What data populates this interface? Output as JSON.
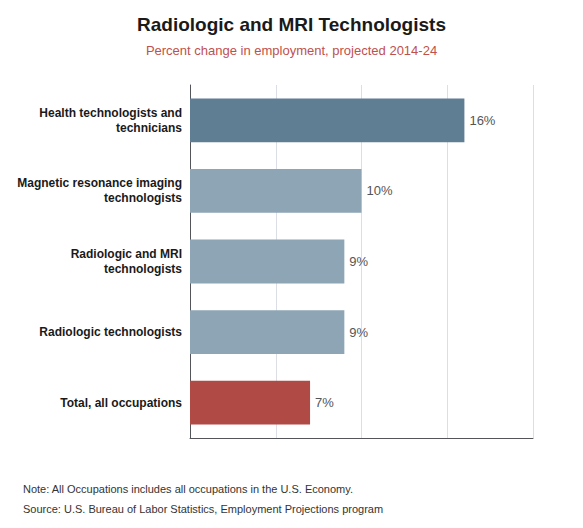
{
  "chart_data": {
    "type": "bar",
    "orientation": "horizontal",
    "title": "Radiologic and MRI Technologists",
    "subtitle": "Percent change in employment, projected 2014-24",
    "categories": [
      "Total, all occupations",
      "Radiologic technologists",
      "Radiologic and MRI\ntechnologists",
      "Magnetic resonance imaging\ntechnologists",
      "Health technologists and\ntechnicians"
    ],
    "values": [
      7,
      9,
      9,
      10,
      16
    ],
    "value_labels": [
      "7%",
      "9%",
      "9%",
      "10%",
      "16%"
    ],
    "colors": [
      "#b04a45",
      "#8da5b4",
      "#8da5b4",
      "#8da5b4",
      "#5f7d93"
    ],
    "xlim": [
      0,
      20
    ],
    "xticks": [
      0,
      5,
      10,
      15,
      20
    ],
    "grid": true,
    "data_labels": true,
    "tick_labels": "y",
    "annotations": [
      "Note: All Occupations includes all occupations in the U.S. Economy.",
      "Source: U.S. Bureau of Labor Statistics, Employment Projections program"
    ]
  }
}
